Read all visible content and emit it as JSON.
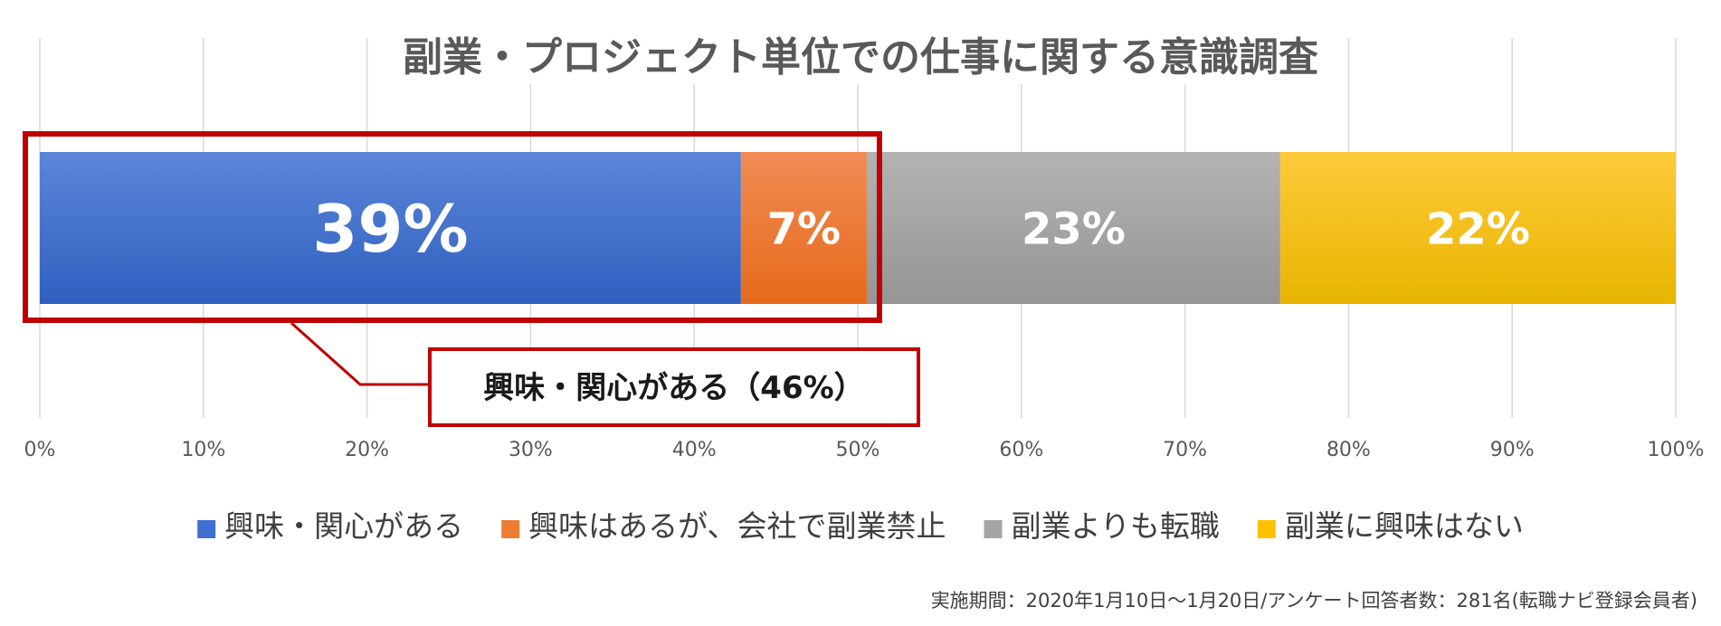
{
  "chart_data": {
    "type": "bar",
    "orientation": "horizontal",
    "stacked": true,
    "percent": true,
    "title": "副業・プロジェクト単位での仕事に関する意識調査",
    "categories": [
      ""
    ],
    "series": [
      {
        "name": "興味・関心がある",
        "values": [
          39
        ],
        "label": "39%",
        "color": "#3f6fcf"
      },
      {
        "name": "興味はあるが、会社で副業禁止",
        "values": [
          7
        ],
        "label": "7%",
        "color": "#ed7d31"
      },
      {
        "name": "副業よりも転職",
        "values": [
          23
        ],
        "label": "23%",
        "color": "#a5a5a5"
      },
      {
        "name": "副業に興味はない",
        "values": [
          22
        ],
        "label": "22%",
        "color": "#ffc000"
      }
    ],
    "xlim": [
      0,
      100
    ],
    "xticks": [
      "0%",
      "10%",
      "20%",
      "30%",
      "40%",
      "50%",
      "60%",
      "70%",
      "80%",
      "90%",
      "100%"
    ],
    "grid": true,
    "legend_position": "bottom",
    "annotation": {
      "text": "興味・関心がある（46%）",
      "spans_series": [
        0,
        1
      ],
      "color": "#c00000"
    },
    "footnote": "実施期間：2020年1月10日〜1月20日/アンケート回答者数：281名(転職ナビ登録会員者)"
  }
}
